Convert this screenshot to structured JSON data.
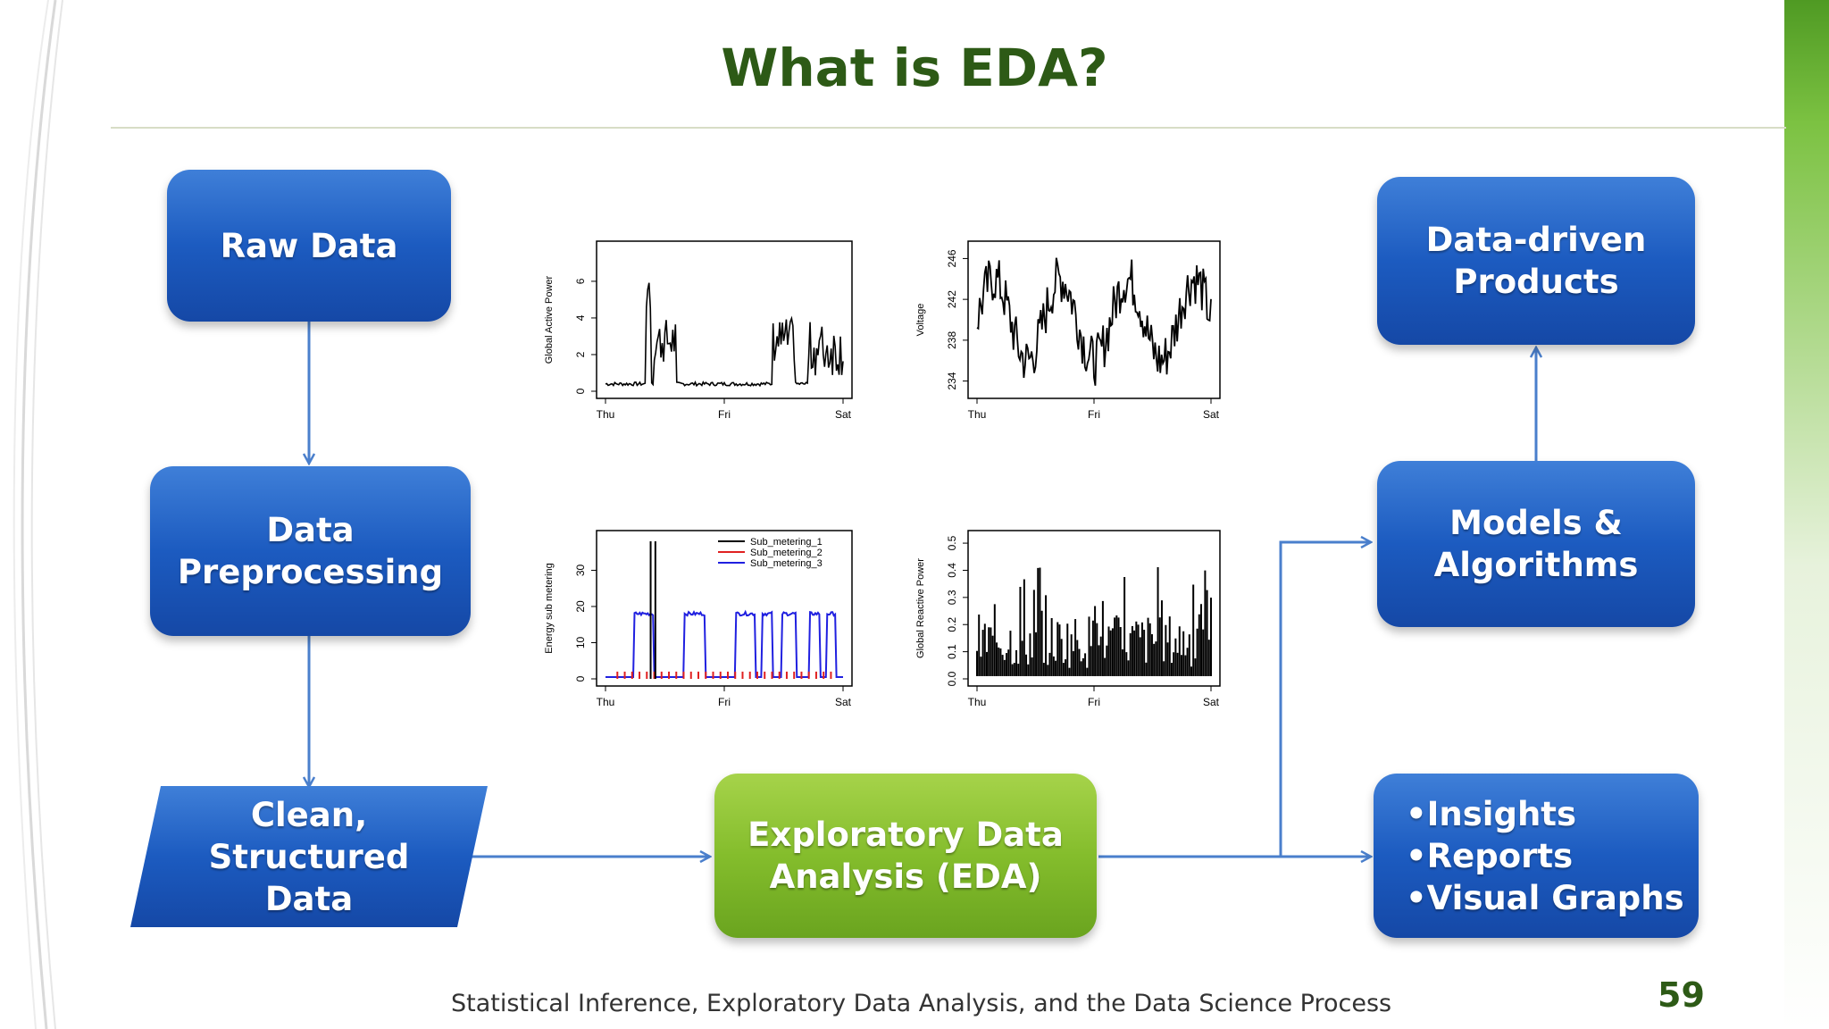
{
  "slide": {
    "title": "What is EDA?",
    "footer": "Statistical Inference, Exploratory Data Analysis, and the Data Science Process",
    "page_number": "59"
  },
  "diagram": {
    "raw_data": "Raw Data",
    "preprocessing_line1": "Data",
    "preprocessing_line2": "Preprocessing",
    "clean_line1": "Clean,",
    "clean_line2": "Structured",
    "clean_line3": "Data",
    "eda_line1": "Exploratory Data",
    "eda_line2": "Analysis (EDA)",
    "products_line1": "Data-driven",
    "products_line2": "Products",
    "models_line1": "Models &",
    "models_line2": "Algorithms",
    "outputs": [
      "•Insights",
      "•Reports",
      "•Visual Graphs"
    ]
  },
  "chart_data": [
    {
      "type": "line",
      "ylabel": "Global Active Power",
      "x_ticks": [
        "Thu",
        "Fri",
        "Sat"
      ],
      "y_ticks": [
        "0",
        "2",
        "4",
        "6"
      ],
      "ylim": [
        0,
        7.8
      ]
    },
    {
      "type": "line",
      "ylabel": "Voltage",
      "x_ticks": [
        "Thu",
        "Fri",
        "Sat"
      ],
      "y_ticks": [
        "234",
        "238",
        "242",
        "246"
      ],
      "ylim": [
        233,
        247
      ]
    },
    {
      "type": "line",
      "ylabel": "Energy sub metering",
      "x_ticks": [
        "Thu",
        "Fri",
        "Sat"
      ],
      "y_ticks": [
        "0",
        "10",
        "20",
        "30"
      ],
      "ylim": [
        0,
        39
      ],
      "legend": [
        "Sub_metering_1",
        "Sub_metering_2",
        "Sub_metering_3"
      ],
      "legend_colors": [
        "#000000",
        "#e02020",
        "#2020e0"
      ],
      "legend_position": "top-right"
    },
    {
      "type": "bar",
      "ylabel": "Global Reactive Power",
      "x_ticks": [
        "Thu",
        "Fri",
        "Sat"
      ],
      "y_ticks": [
        "0.0",
        "0.1",
        "0.2",
        "0.3",
        "0.4",
        "0.5"
      ],
      "ylim": [
        0,
        0.52
      ]
    }
  ]
}
